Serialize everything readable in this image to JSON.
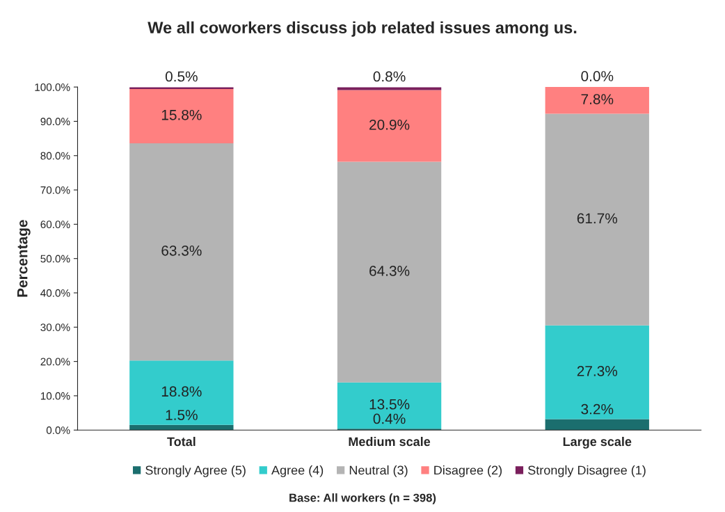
{
  "chart_data": {
    "type": "bar",
    "title": "We all coworkers discuss job related issues among us.",
    "ylabel": "Percentage",
    "categories": [
      "Total",
      "Medium scale",
      "Large scale"
    ],
    "stacked": true,
    "series": [
      {
        "name": "Strongly Agree (5)",
        "color": "#1b6e6e",
        "values": [
          1.5,
          0.4,
          3.2
        ],
        "value_labels": [
          "1.5%",
          "0.4%",
          "3.2%"
        ]
      },
      {
        "name": "Agree (4)",
        "color": "#33cccc",
        "values": [
          18.8,
          13.5,
          27.3
        ],
        "value_labels": [
          "18.8%",
          "13.5%",
          "27.3%"
        ]
      },
      {
        "name": "Neutral (3)",
        "color": "#b4b4b4",
        "values": [
          63.3,
          64.3,
          61.7
        ],
        "value_labels": [
          "63.3%",
          "64.3%",
          "61.7%"
        ]
      },
      {
        "name": "Disagree (2)",
        "color": "#ff8080",
        "values": [
          15.8,
          20.9,
          7.8
        ],
        "value_labels": [
          "15.8%",
          "20.9%",
          "7.8%"
        ]
      },
      {
        "name": "Strongly Disagree (1)",
        "color": "#7a1f5c",
        "values": [
          0.5,
          0.8,
          0.0
        ],
        "value_labels": [
          "0.5%",
          "0.8%",
          "0.0%"
        ]
      }
    ],
    "ylim": [
      0,
      100
    ],
    "yticks": [
      {
        "value": 0,
        "label": "0.0%"
      },
      {
        "value": 10,
        "label": "10.0%"
      },
      {
        "value": 20,
        "label": "20.0%"
      },
      {
        "value": 30,
        "label": "30.0%"
      },
      {
        "value": 40,
        "label": "40.0%"
      },
      {
        "value": 50,
        "label": "50.0%"
      },
      {
        "value": 60,
        "label": "60.0%"
      },
      {
        "value": 70,
        "label": "70.0%"
      },
      {
        "value": 80,
        "label": "80.0%"
      },
      {
        "value": 90,
        "label": "90.0%"
      },
      {
        "value": 100,
        "label": "100.0%"
      }
    ],
    "grid": false,
    "legend": "bottom",
    "annotations": [
      "Base: All workers (n = 398)"
    ]
  }
}
